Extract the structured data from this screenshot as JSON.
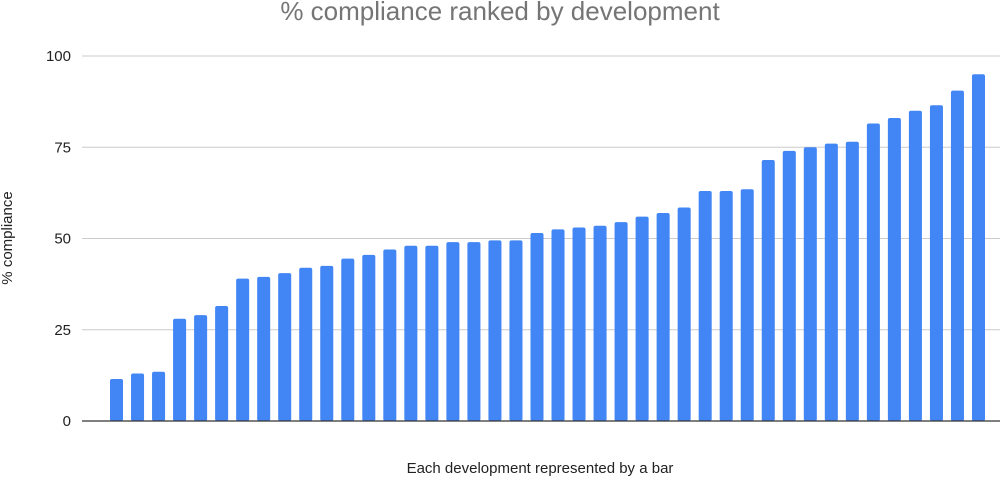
{
  "chart_data": {
    "type": "bar",
    "title": "% compliance ranked by development",
    "xlabel": "Each development represented by a bar",
    "ylabel": "% compliance",
    "ylim": [
      0,
      100
    ],
    "yticks": [
      0,
      25,
      50,
      75,
      100
    ],
    "grid": true,
    "legend": "none",
    "bar_color": "#4285f4",
    "values": [
      11.5,
      13,
      13.5,
      28,
      29,
      31.5,
      39,
      39.5,
      40.5,
      42,
      42.5,
      44.5,
      45.5,
      47,
      48,
      48,
      49,
      49,
      49.5,
      49.5,
      51.5,
      52.5,
      53,
      53.5,
      54.5,
      56,
      57,
      58.5,
      63,
      63,
      63.5,
      71.5,
      74,
      75,
      76,
      76.5,
      81.5,
      83,
      85,
      86.5,
      90.5,
      95
    ]
  }
}
